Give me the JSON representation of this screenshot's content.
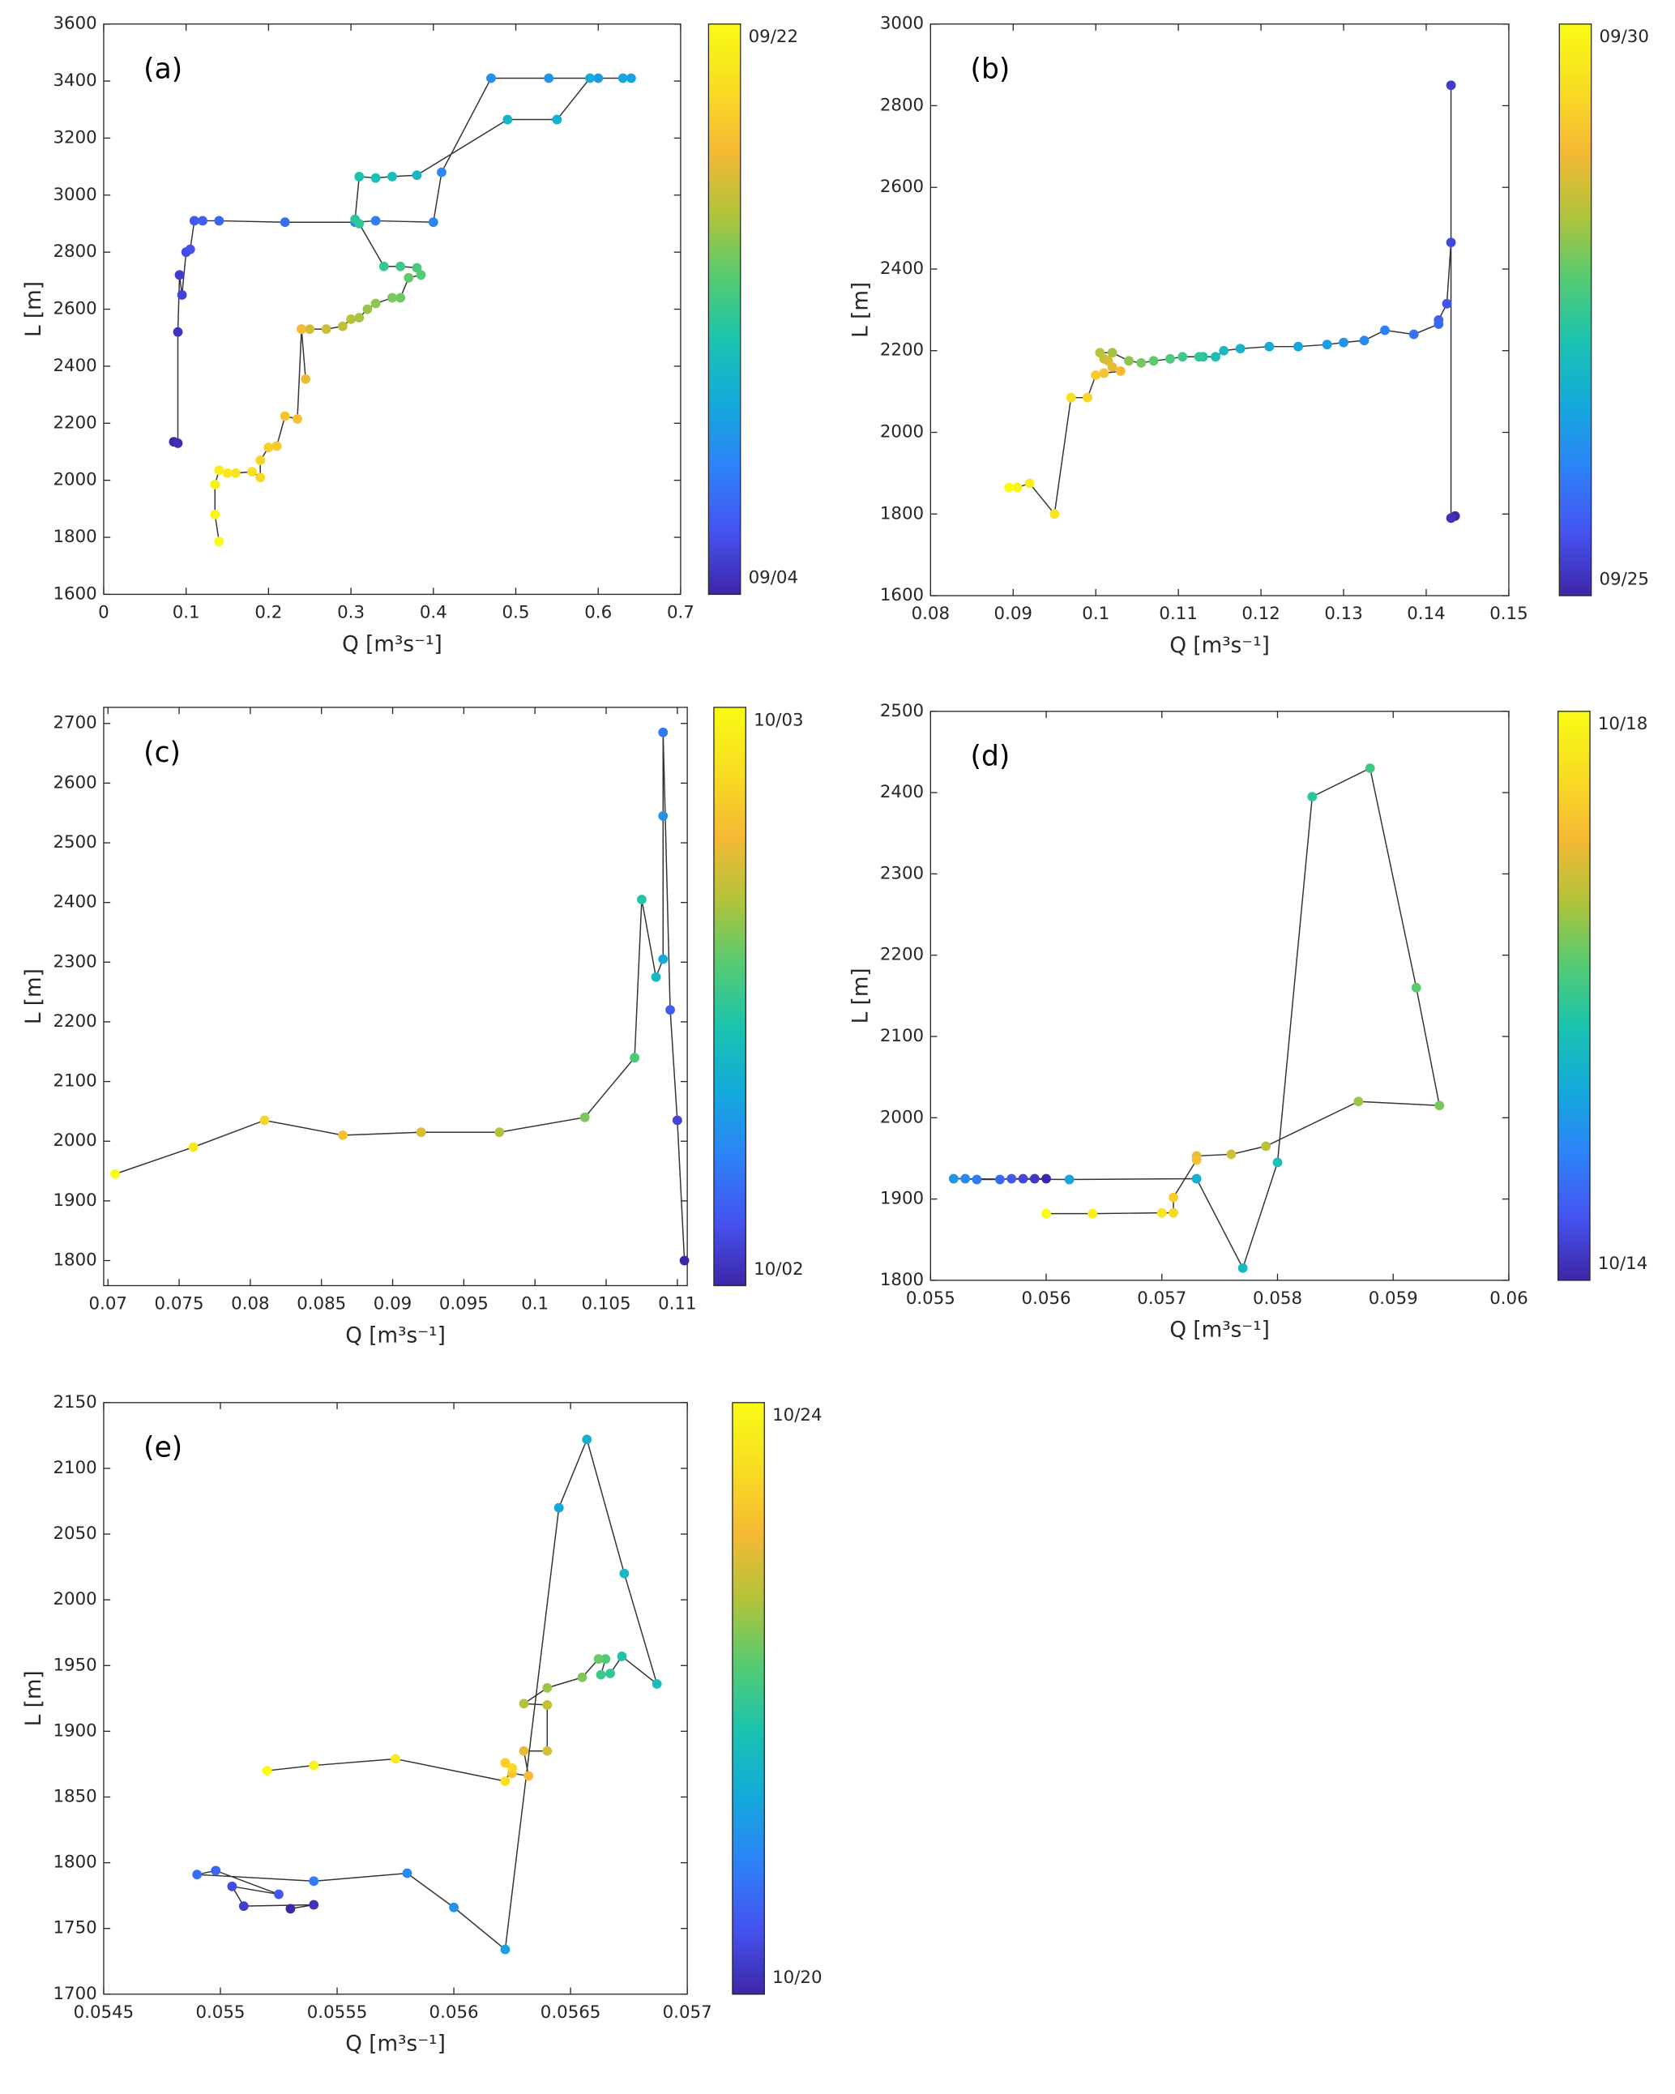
{
  "colormap": [
    "#3e26a8",
    "#4554f0",
    "#2d82f8",
    "#14a9dc",
    "#1ac3b0",
    "#55cb72",
    "#b2c33a",
    "#f6b934",
    "#f8dd22",
    "#f9fb15"
  ],
  "chart_data": [
    {
      "type": "line",
      "label": "(a)",
      "xlabel": "Q [m³s⁻¹]",
      "ylabel": "L [m]",
      "colorbar_labels": [
        "09/04",
        "09/22"
      ],
      "xlim": [
        0,
        0.7
      ],
      "ylim": [
        1600,
        3600
      ],
      "xticks": [
        0,
        0.1,
        0.2,
        0.3,
        0.4,
        0.5,
        0.6,
        0.7
      ],
      "yticks": [
        1600,
        1800,
        2000,
        2200,
        2400,
        2600,
        2800,
        3000,
        3200,
        3400,
        3600
      ],
      "x": [
        0.085,
        0.09,
        0.09,
        0.092,
        0.095,
        0.1,
        0.105,
        0.11,
        0.12,
        0.14,
        0.22,
        0.305,
        0.33,
        0.4,
        0.41,
        0.47,
        0.54,
        0.6,
        0.64,
        0.63,
        0.59,
        0.55,
        0.49,
        0.38,
        0.35,
        0.33,
        0.31,
        0.305,
        0.31,
        0.34,
        0.36,
        0.38,
        0.385,
        0.37,
        0.36,
        0.35,
        0.33,
        0.32,
        0.31,
        0.3,
        0.29,
        0.27,
        0.25,
        0.24,
        0.245,
        0.24,
        0.235,
        0.22,
        0.21,
        0.2,
        0.19,
        0.19,
        0.18,
        0.16,
        0.15,
        0.14,
        0.135,
        0.135,
        0.14
      ],
      "y": [
        2135,
        2130,
        2520,
        2720,
        2650,
        2800,
        2810,
        2910,
        2910,
        2910,
        2905,
        2905,
        2910,
        2905,
        3080,
        3410,
        3410,
        3410,
        3410,
        3410,
        3410,
        3265,
        3265,
        3070,
        3065,
        3060,
        3065,
        2915,
        2900,
        2750,
        2750,
        2745,
        2720,
        2710,
        2640,
        2640,
        2620,
        2600,
        2570,
        2565,
        2540,
        2530,
        2530,
        2530,
        2355,
        2530,
        2215,
        2225,
        2120,
        2115,
        2070,
        2010,
        2030,
        2025,
        2025,
        2035,
        1985,
        1880,
        1785
      ]
    },
    {
      "type": "line",
      "label": "(b)",
      "xlabel": "Q [m³s⁻¹]",
      "ylabel": "L [m]",
      "colorbar_labels": [
        "09/25",
        "09/30"
      ],
      "xlim": [
        0.08,
        0.15
      ],
      "ylim": [
        1600,
        3000
      ],
      "xticks": [
        0.08,
        0.09,
        0.1,
        0.11,
        0.12,
        0.13,
        0.14,
        0.15
      ],
      "yticks": [
        1600,
        1800,
        2000,
        2200,
        2400,
        2600,
        2800,
        3000
      ],
      "x": [
        0.1435,
        0.143,
        0.143,
        0.143,
        0.1425,
        0.1415,
        0.1415,
        0.1385,
        0.135,
        0.1325,
        0.13,
        0.128,
        0.1245,
        0.121,
        0.1175,
        0.1155,
        0.1145,
        0.113,
        0.1125,
        0.1105,
        0.109,
        0.107,
        0.1055,
        0.104,
        0.102,
        0.1005,
        0.101,
        0.1015,
        0.102,
        0.103,
        0.101,
        0.1,
        0.099,
        0.097,
        0.095,
        0.092,
        0.0905,
        0.0895
      ],
      "y": [
        1795,
        1790,
        2850,
        2465,
        2315,
        2275,
        2265,
        2240,
        2250,
        2225,
        2220,
        2215,
        2210,
        2210,
        2205,
        2200,
        2185,
        2185,
        2185,
        2185,
        2180,
        2175,
        2170,
        2175,
        2195,
        2195,
        2180,
        2175,
        2160,
        2150,
        2145,
        2140,
        2085,
        2085,
        1800,
        1875,
        1865,
        1865
      ]
    },
    {
      "type": "line",
      "label": "(c)",
      "xlabel": "Q [m³s⁻¹]",
      "ylabel": "L [m]",
      "colorbar_labels": [
        "10/02",
        "10/03"
      ],
      "xlim": [
        0.0697,
        0.1107
      ],
      "ylim": [
        1758,
        2727
      ],
      "xticks": [
        0.07,
        0.075,
        0.08,
        0.085,
        0.09,
        0.095,
        0.1,
        0.105,
        0.11
      ],
      "yticks": [
        1800,
        1900,
        2000,
        2100,
        2200,
        2300,
        2400,
        2500,
        2600,
        2700
      ],
      "x": [
        0.1105,
        0.11,
        0.1095,
        0.109,
        0.109,
        0.109,
        0.1085,
        0.1075,
        0.107,
        0.1035,
        0.0975,
        0.092,
        0.0865,
        0.081,
        0.076,
        0.0705
      ],
      "y": [
        1800,
        2035,
        2220,
        2685,
        2545,
        2305,
        2275,
        2405,
        2140,
        2040,
        2015,
        2015,
        2010,
        2035,
        1990,
        1945
      ]
    },
    {
      "type": "line",
      "label": "(d)",
      "xlabel": "Q [m³s⁻¹]",
      "ylabel": "L [m]",
      "colorbar_labels": [
        "10/14",
        "10/18"
      ],
      "xlim": [
        0.055,
        0.06
      ],
      "ylim": [
        1800,
        2500
      ],
      "xticks": [
        0.055,
        0.056,
        0.057,
        0.058,
        0.059,
        0.06
      ],
      "yticks": [
        1800,
        1900,
        2000,
        2100,
        2200,
        2300,
        2400,
        2500
      ],
      "x": [
        0.056,
        0.0559,
        0.0558,
        0.0557,
        0.0556,
        0.0554,
        0.0553,
        0.0552,
        0.0562,
        0.0573,
        0.0577,
        0.058,
        0.0583,
        0.0588,
        0.0592,
        0.0594,
        0.0587,
        0.0579,
        0.0576,
        0.0573,
        0.0573,
        0.0571,
        0.0571,
        0.057,
        0.0564,
        0.056
      ],
      "y": [
        1925,
        1925,
        1925,
        1925,
        1924,
        1924,
        1925,
        1925,
        1924,
        1925,
        1815,
        1945,
        2395,
        2430,
        2160,
        2015,
        2020,
        1965,
        1955,
        1953,
        1948,
        1902,
        1883,
        1883,
        1882,
        1882
      ]
    },
    {
      "type": "line",
      "label": "(e)",
      "xlabel": "Q [m³s⁻¹]",
      "ylabel": "L [m]",
      "colorbar_labels": [
        "10/20",
        "10/24"
      ],
      "xlim": [
        0.0545,
        0.057
      ],
      "ylim": [
        1700,
        2150
      ],
      "xticks": [
        0.0545,
        0.055,
        0.0555,
        0.056,
        0.0565,
        0.057
      ],
      "yticks": [
        1700,
        1750,
        1800,
        1850,
        1900,
        1950,
        2000,
        2050,
        2100,
        2150
      ],
      "x": [
        0.0553,
        0.0554,
        0.0551,
        0.05505,
        0.05525,
        0.05498,
        0.0549,
        0.0554,
        0.0558,
        0.056,
        0.05622,
        0.05645,
        0.05657,
        0.05673,
        0.05687,
        0.05672,
        0.05667,
        0.05663,
        0.05665,
        0.05662,
        0.05655,
        0.0564,
        0.0563,
        0.0564,
        0.0564,
        0.0563,
        0.05632,
        0.05625,
        0.05622,
        0.05625,
        0.05622,
        0.05575,
        0.0554,
        0.0552
      ],
      "y": [
        1765,
        1768,
        1767,
        1782,
        1776,
        1794,
        1791,
        1786,
        1792,
        1766,
        1734,
        2070,
        2122,
        2020,
        1936,
        1957,
        1944,
        1943,
        1955,
        1955,
        1941,
        1933,
        1921,
        1920,
        1885,
        1885,
        1866,
        1868,
        1876,
        1872,
        1862,
        1879,
        1874,
        1870
      ]
    }
  ]
}
